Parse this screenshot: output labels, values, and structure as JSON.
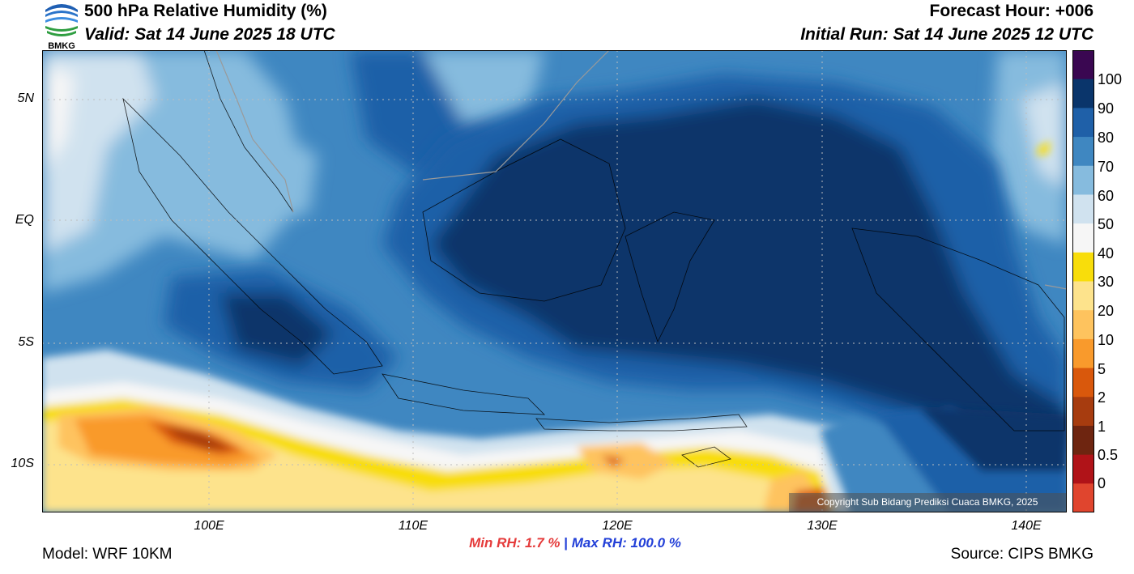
{
  "header": {
    "title": "500 hPa Relative Humidity (%)",
    "valid": "Valid: Sat 14 June 2025 18 UTC",
    "forecast_hour": "Forecast Hour: +006",
    "initial_run": "Initial Run: Sat 14 June 2025 12 UTC",
    "logo_text": "BMKG"
  },
  "axes": {
    "lat_labels": [
      "5N",
      "EQ",
      "5S",
      "10S"
    ],
    "lon_labels": [
      "100E",
      "110E",
      "120E",
      "130E",
      "140E"
    ]
  },
  "colorbar": {
    "labels": [
      "100",
      "90",
      "80",
      "70",
      "60",
      "50",
      "40",
      "30",
      "20",
      "10",
      "5",
      "2",
      "1",
      "0.5",
      "0"
    ],
    "colors": [
      "#3a0751",
      "#0a356b",
      "#1f60a8",
      "#3f87c1",
      "#86bbde",
      "#d0e2ef",
      "#f6f6f6",
      "#f8dd0b",
      "#fde38c",
      "#fec35e",
      "#f99a2c",
      "#d9580c",
      "#a73c0f",
      "#6e2510",
      "#b01318",
      "#e0452e"
    ]
  },
  "stats": {
    "min_label": "Min RH:",
    "min_value": "1.7 %",
    "separator": "|",
    "max_label": "Max RH:",
    "max_value": "100.0 %"
  },
  "footer": {
    "model": "Model: WRF 10KM",
    "source": "Source: CIPS BMKG",
    "copyright": "Copyright Sub Bidang Prediksi Cuaca BMKG, 2025"
  }
}
